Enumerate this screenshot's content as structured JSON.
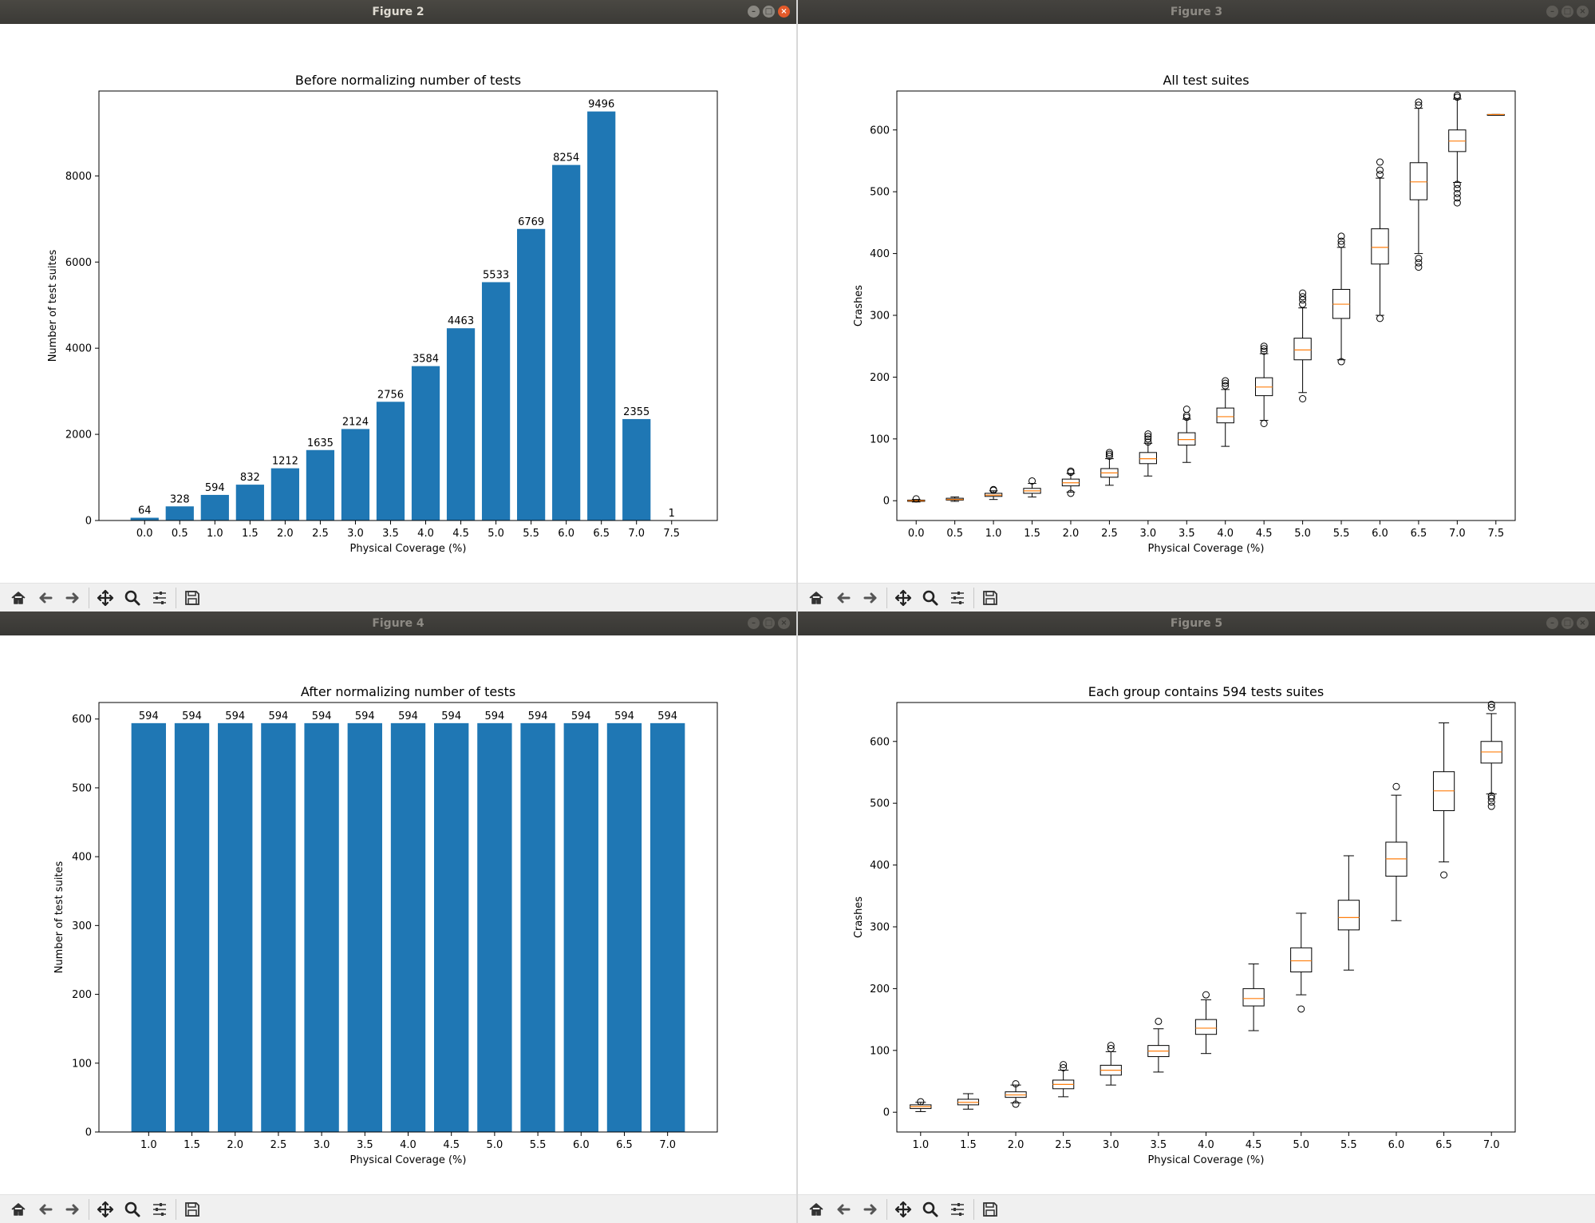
{
  "windows": [
    {
      "title": "Figure 2",
      "active": true
    },
    {
      "title": "Figure 3",
      "active": false
    },
    {
      "title": "Figure 4",
      "active": false
    },
    {
      "title": "Figure 5",
      "active": false
    }
  ],
  "toolbar_icons": [
    "home-icon",
    "back-arrow-icon",
    "forward-arrow-icon",
    "pan-move-icon",
    "zoom-magnifier-icon",
    "configure-subplots-icon",
    "save-icon"
  ],
  "chart_data": [
    {
      "type": "bar",
      "title": "Before normalizing number of tests",
      "xlabel": "Physical Coverage (%)",
      "ylabel": "Number of test suites",
      "categories": [
        "0.0",
        "0.5",
        "1.0",
        "1.5",
        "2.0",
        "2.5",
        "3.0",
        "3.5",
        "4.0",
        "4.5",
        "5.0",
        "5.5",
        "6.0",
        "6.5",
        "7.0",
        "7.5"
      ],
      "values": [
        64,
        328,
        594,
        832,
        1212,
        1635,
        2124,
        2756,
        3584,
        4463,
        5533,
        6769,
        8254,
        9496,
        2355,
        1
      ],
      "labels": [
        "64",
        "328",
        "594",
        "832",
        "1212",
        "1635",
        "2124",
        "2756",
        "3584",
        "4463",
        "5533",
        "6769",
        "8254",
        "9496",
        "2355",
        "1"
      ],
      "yticks": [
        0,
        2000,
        4000,
        6000,
        8000
      ],
      "ytick_labels": [
        "0",
        "2000",
        "4000",
        "6000",
        "8000"
      ],
      "ylim": [
        0,
        9971
      ],
      "color": "#1f77b4"
    },
    {
      "type": "box",
      "title": "All test suites",
      "xlabel": "Physical Coverage (%)",
      "ylabel": "Crashes",
      "categories": [
        "0.0",
        "0.5",
        "1.0",
        "1.5",
        "2.0",
        "2.5",
        "3.0",
        "3.5",
        "4.0",
        "4.5",
        "5.0",
        "5.5",
        "6.0",
        "6.5",
        "7.0",
        "7.5"
      ],
      "yticks": [
        0,
        100,
        200,
        300,
        400,
        500,
        600
      ],
      "ytick_labels": [
        "0",
        "100",
        "200",
        "300",
        "400",
        "500",
        "600"
      ],
      "ylim": [
        -32,
        663
      ],
      "boxes": [
        {
          "q1": -1,
          "median": 0,
          "q3": 1,
          "wlo": -2,
          "whi": 2,
          "outliers": [
            3
          ]
        },
        {
          "q1": 1,
          "median": 2,
          "q3": 4,
          "wlo": -1,
          "whi": 6,
          "outliers": []
        },
        {
          "q1": 7,
          "median": 9,
          "q3": 12,
          "wlo": 2,
          "whi": 16,
          "outliers": [
            17,
            18
          ]
        },
        {
          "q1": 12,
          "median": 16,
          "q3": 20,
          "wlo": 6,
          "whi": 28,
          "outliers": [
            32
          ]
        },
        {
          "q1": 24,
          "median": 29,
          "q3": 35,
          "wlo": 14,
          "whi": 44,
          "outliers": [
            12,
            46,
            48
          ]
        },
        {
          "q1": 38,
          "median": 45,
          "q3": 52,
          "wlo": 25,
          "whi": 68,
          "outliers": [
            72,
            75,
            78
          ]
        },
        {
          "q1": 60,
          "median": 68,
          "q3": 78,
          "wlo": 40,
          "whi": 93,
          "outliers": [
            95,
            100,
            104,
            108
          ]
        },
        {
          "q1": 90,
          "median": 99,
          "q3": 110,
          "wlo": 62,
          "whi": 132,
          "outliers": [
            135,
            138,
            148
          ]
        },
        {
          "q1": 126,
          "median": 136,
          "q3": 150,
          "wlo": 88,
          "whi": 180,
          "outliers": [
            186,
            190,
            194
          ]
        },
        {
          "q1": 170,
          "median": 184,
          "q3": 199,
          "wlo": 130,
          "whi": 238,
          "outliers": [
            125,
            242,
            246,
            250
          ]
        },
        {
          "q1": 228,
          "median": 244,
          "q3": 263,
          "wlo": 175,
          "whi": 312,
          "outliers": [
            165,
            318,
            325,
            330,
            336
          ]
        },
        {
          "q1": 295,
          "median": 318,
          "q3": 342,
          "wlo": 228,
          "whi": 410,
          "outliers": [
            225,
            415,
            420,
            428
          ]
        },
        {
          "q1": 383,
          "median": 410,
          "q3": 440,
          "wlo": 300,
          "whi": 522,
          "outliers": [
            295,
            528,
            535,
            548
          ]
        },
        {
          "q1": 487,
          "median": 516,
          "q3": 547,
          "wlo": 400,
          "whi": 635,
          "outliers": [
            378,
            385,
            392,
            640,
            645
          ]
        },
        {
          "q1": 565,
          "median": 582,
          "q3": 600,
          "wlo": 515,
          "whi": 650,
          "outliers": [
            482,
            490,
            497,
            505,
            512,
            653,
            656
          ]
        },
        {
          "q1": 625,
          "median": 625,
          "q3": 625,
          "wlo": 625,
          "whi": 625,
          "outliers": []
        }
      ]
    },
    {
      "type": "bar",
      "title": "After normalizing number of tests",
      "xlabel": "Physical Coverage (%)",
      "ylabel": "Number of test suites",
      "categories": [
        "1.0",
        "1.5",
        "2.0",
        "2.5",
        "3.0",
        "3.5",
        "4.0",
        "4.5",
        "5.0",
        "5.5",
        "6.0",
        "6.5",
        "7.0"
      ],
      "values": [
        594,
        594,
        594,
        594,
        594,
        594,
        594,
        594,
        594,
        594,
        594,
        594,
        594
      ],
      "labels": [
        "594",
        "594",
        "594",
        "594",
        "594",
        "594",
        "594",
        "594",
        "594",
        "594",
        "594",
        "594",
        "594"
      ],
      "yticks": [
        0,
        100,
        200,
        300,
        400,
        500,
        600
      ],
      "ytick_labels": [
        "0",
        "100",
        "200",
        "300",
        "400",
        "500",
        "600"
      ],
      "ylim": [
        0,
        624
      ],
      "color": "#1f77b4"
    },
    {
      "type": "box",
      "title": "Each group contains 594 tests suites",
      "xlabel": "Physical Coverage (%)",
      "ylabel": "Crashes",
      "categories": [
        "1.0",
        "1.5",
        "2.0",
        "2.5",
        "3.0",
        "3.5",
        "4.0",
        "4.5",
        "5.0",
        "5.5",
        "6.0",
        "6.5",
        "7.0"
      ],
      "yticks": [
        0,
        100,
        200,
        300,
        400,
        500,
        600
      ],
      "ytick_labels": [
        "0",
        "100",
        "200",
        "300",
        "400",
        "500",
        "600"
      ],
      "ylim": [
        -32,
        663
      ],
      "boxes": [
        {
          "q1": 6,
          "median": 9,
          "q3": 12,
          "wlo": 1,
          "whi": 16,
          "outliers": [
            17
          ]
        },
        {
          "q1": 12,
          "median": 16,
          "q3": 21,
          "wlo": 5,
          "whi": 30,
          "outliers": []
        },
        {
          "q1": 24,
          "median": 28,
          "q3": 33,
          "wlo": 15,
          "whi": 44,
          "outliers": [
            13,
            46
          ]
        },
        {
          "q1": 38,
          "median": 45,
          "q3": 52,
          "wlo": 25,
          "whi": 68,
          "outliers": [
            72,
            77
          ]
        },
        {
          "q1": 60,
          "median": 68,
          "q3": 76,
          "wlo": 44,
          "whi": 98,
          "outliers": [
            103,
            108
          ]
        },
        {
          "q1": 90,
          "median": 99,
          "q3": 108,
          "wlo": 65,
          "whi": 135,
          "outliers": [
            147
          ]
        },
        {
          "q1": 126,
          "median": 136,
          "q3": 150,
          "wlo": 95,
          "whi": 182,
          "outliers": [
            190
          ]
        },
        {
          "q1": 172,
          "median": 184,
          "q3": 200,
          "wlo": 132,
          "whi": 240,
          "outliers": []
        },
        {
          "q1": 227,
          "median": 245,
          "q3": 266,
          "wlo": 190,
          "whi": 322,
          "outliers": [
            167
          ]
        },
        {
          "q1": 295,
          "median": 315,
          "q3": 343,
          "wlo": 230,
          "whi": 415,
          "outliers": []
        },
        {
          "q1": 382,
          "median": 410,
          "q3": 437,
          "wlo": 310,
          "whi": 513,
          "outliers": [
            527
          ]
        },
        {
          "q1": 488,
          "median": 520,
          "q3": 551,
          "wlo": 405,
          "whi": 630,
          "outliers": [
            384
          ]
        },
        {
          "q1": 565,
          "median": 583,
          "q3": 600,
          "wlo": 515,
          "whi": 645,
          "outliers": [
            495,
            502,
            508,
            512,
            655,
            660
          ]
        }
      ]
    }
  ]
}
